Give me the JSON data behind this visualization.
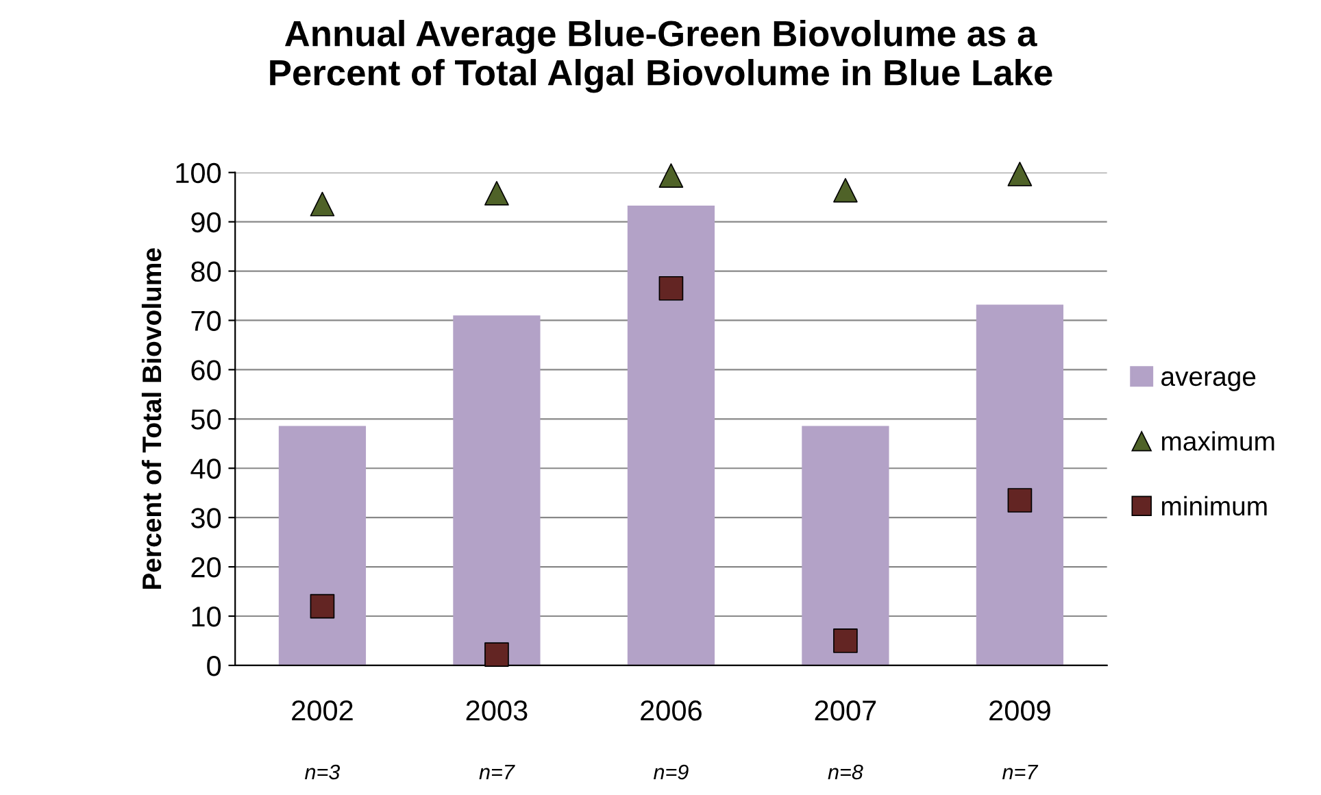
{
  "chart_data": {
    "type": "bar",
    "title": "Annual Average Blue-Green Biovolume as a\nPercent of Total Algal Biovolume in Blue Lake",
    "ylabel": "Percent of Total Biovolume",
    "categories": [
      "2002",
      "2003",
      "2006",
      "2007",
      "2009"
    ],
    "series": [
      {
        "name": "average",
        "color": "#b3a2c7",
        "values": [
          48.6,
          71,
          93.3,
          48.6,
          73.2
        ]
      },
      {
        "name": "maximum",
        "type": "scatter",
        "marker": "triangle",
        "color": "#4f6228",
        "values": [
          93.6,
          95.8,
          99.4,
          96.4,
          99.7
        ]
      },
      {
        "name": "minimum",
        "type": "scatter",
        "marker": "square",
        "color": "#632523",
        "values": [
          12,
          2.2,
          76.5,
          5,
          33.5
        ]
      }
    ],
    "ylim": [
      0,
      100
    ],
    "yticks": [
      0,
      10,
      20,
      30,
      40,
      50,
      60,
      70,
      80,
      90,
      100
    ],
    "grid": "y",
    "legend": "right",
    "annotations": [
      "n=3",
      "n=7",
      "n=9",
      "n=8",
      "n=7"
    ]
  }
}
